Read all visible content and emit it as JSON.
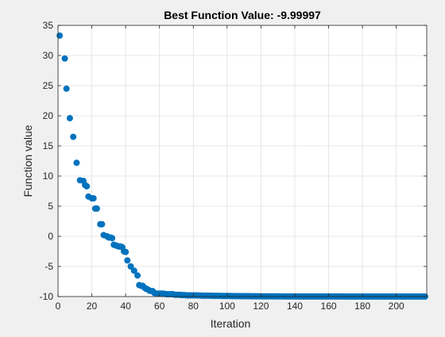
{
  "chart_data": {
    "type": "scatter",
    "title": "Best Function Value: -9.99997",
    "xlabel": "Iteration",
    "ylabel": "Function value",
    "xlim": [
      0,
      218
    ],
    "ylim": [
      -10,
      35
    ],
    "xticks": [
      0,
      20,
      40,
      60,
      80,
      100,
      120,
      140,
      160,
      180,
      200
    ],
    "yticks": [
      -10,
      -5,
      0,
      5,
      10,
      15,
      20,
      25,
      30,
      35
    ],
    "grid": true,
    "marker_color": "#0072BD",
    "series": [
      {
        "points": [
          [
            1,
            33.3
          ],
          [
            4,
            29.5
          ],
          [
            5,
            24.5
          ],
          [
            7,
            19.6
          ],
          [
            9,
            16.5
          ],
          [
            11,
            12.2
          ],
          [
            13,
            9.3
          ],
          [
            15,
            9.2
          ],
          [
            16,
            8.5
          ],
          [
            17,
            8.3
          ],
          [
            18,
            6.6
          ],
          [
            20,
            6.3
          ],
          [
            21,
            6.3
          ],
          [
            22,
            4.6
          ],
          [
            23,
            4.6
          ],
          [
            25,
            2.0
          ],
          [
            26,
            2.0
          ],
          [
            27,
            0.2
          ],
          [
            29,
            0.0
          ],
          [
            30,
            -0.2
          ],
          [
            31,
            -0.2
          ],
          [
            32,
            -0.3
          ],
          [
            33,
            -1.4
          ],
          [
            34,
            -1.5
          ],
          [
            35,
            -1.6
          ],
          [
            36,
            -1.7
          ],
          [
            37,
            -1.7
          ],
          [
            38,
            -1.8
          ],
          [
            39,
            -2.5
          ],
          [
            40,
            -2.6
          ],
          [
            41,
            -4.0
          ],
          [
            43,
            -5.0
          ],
          [
            45,
            -5.7
          ],
          [
            47,
            -6.5
          ],
          [
            48,
            -8.1
          ],
          [
            49,
            -8.2
          ],
          [
            50,
            -8.2
          ],
          [
            51,
            -8.5
          ],
          [
            52,
            -8.7
          ],
          [
            53,
            -8.8
          ],
          [
            54,
            -9.0
          ],
          [
            55,
            -9.1
          ],
          [
            56,
            -9.1
          ],
          [
            57,
            -9.4
          ],
          [
            58,
            -9.5
          ],
          [
            59,
            -9.5
          ],
          [
            60,
            -9.5
          ],
          [
            61,
            -9.5
          ],
          [
            62,
            -9.5
          ],
          [
            63,
            -9.55
          ],
          [
            64,
            -9.6
          ],
          [
            65,
            -9.6
          ],
          [
            66,
            -9.6
          ],
          [
            67,
            -9.6
          ],
          [
            68,
            -9.6
          ],
          [
            69,
            -9.7
          ],
          [
            70,
            -9.7
          ],
          [
            71,
            -9.7
          ],
          [
            72,
            -9.7
          ],
          [
            73,
            -9.75
          ],
          [
            74,
            -9.75
          ],
          [
            75,
            -9.75
          ],
          [
            76,
            -9.8
          ],
          [
            77,
            -9.8
          ],
          [
            78,
            -9.8
          ],
          [
            79,
            -9.8
          ],
          [
            80,
            -9.8
          ],
          [
            81,
            -9.8
          ],
          [
            82,
            -9.8
          ],
          [
            83,
            -9.82
          ],
          [
            84,
            -9.82
          ],
          [
            85,
            -9.85
          ],
          [
            86,
            -9.85
          ],
          [
            87,
            -9.85
          ],
          [
            88,
            -9.85
          ],
          [
            89,
            -9.86
          ],
          [
            90,
            -9.86
          ],
          [
            91,
            -9.87
          ],
          [
            92,
            -9.88
          ],
          [
            93,
            -9.88
          ],
          [
            94,
            -9.88
          ],
          [
            95,
            -9.88
          ],
          [
            96,
            -9.88
          ],
          [
            97,
            -9.9
          ],
          [
            98,
            -9.9
          ],
          [
            99,
            -9.9
          ],
          [
            100,
            -9.9
          ],
          [
            101,
            -9.9
          ],
          [
            102,
            -9.9
          ],
          [
            103,
            -9.92
          ],
          [
            104,
            -9.92
          ],
          [
            105,
            -9.92
          ],
          [
            106,
            -9.92
          ],
          [
            107,
            -9.93
          ],
          [
            108,
            -9.93
          ],
          [
            109,
            -9.93
          ],
          [
            110,
            -9.94
          ],
          [
            111,
            -9.94
          ],
          [
            112,
            -9.94
          ],
          [
            113,
            -9.94
          ],
          [
            114,
            -9.95
          ],
          [
            115,
            -9.95
          ],
          [
            116,
            -9.95
          ],
          [
            117,
            -9.95
          ],
          [
            118,
            -9.95
          ],
          [
            119,
            -9.95
          ],
          [
            120,
            -9.96
          ],
          [
            121,
            -9.96
          ],
          [
            122,
            -9.96
          ],
          [
            123,
            -9.96
          ],
          [
            124,
            -9.96
          ],
          [
            125,
            -9.96
          ],
          [
            126,
            -9.97
          ],
          [
            127,
            -9.97
          ],
          [
            128,
            -9.97
          ],
          [
            129,
            -9.97
          ],
          [
            130,
            -9.97
          ],
          [
            131,
            -9.97
          ],
          [
            132,
            -9.97
          ],
          [
            133,
            -9.97
          ],
          [
            134,
            -9.98
          ],
          [
            135,
            -9.98
          ],
          [
            136,
            -9.98
          ],
          [
            137,
            -9.98
          ],
          [
            138,
            -9.98
          ],
          [
            139,
            -9.98
          ],
          [
            140,
            -9.98
          ],
          [
            141,
            -9.98
          ],
          [
            142,
            -9.98
          ],
          [
            143,
            -9.98
          ],
          [
            144,
            -9.98
          ],
          [
            145,
            -9.99
          ],
          [
            146,
            -9.99
          ],
          [
            147,
            -9.99
          ],
          [
            148,
            -9.99
          ],
          [
            149,
            -9.99
          ],
          [
            150,
            -9.99
          ],
          [
            151,
            -9.99
          ],
          [
            152,
            -9.99
          ],
          [
            153,
            -9.99
          ],
          [
            154,
            -9.99
          ],
          [
            155,
            -9.99
          ],
          [
            156,
            -9.99
          ],
          [
            157,
            -9.99
          ],
          [
            158,
            -9.99
          ],
          [
            159,
            -9.99
          ],
          [
            160,
            -9.99
          ],
          [
            161,
            -9.99
          ],
          [
            162,
            -9.99
          ],
          [
            163,
            -9.99
          ],
          [
            164,
            -9.99
          ],
          [
            165,
            -9.99
          ],
          [
            166,
            -9.99
          ],
          [
            167,
            -9.99
          ],
          [
            168,
            -9.99
          ],
          [
            169,
            -9.99
          ],
          [
            170,
            -9.995
          ],
          [
            171,
            -9.995
          ],
          [
            172,
            -9.995
          ],
          [
            173,
            -9.995
          ],
          [
            174,
            -9.995
          ],
          [
            175,
            -9.995
          ],
          [
            176,
            -9.995
          ],
          [
            177,
            -9.995
          ],
          [
            178,
            -9.995
          ],
          [
            179,
            -9.995
          ],
          [
            180,
            -9.995
          ],
          [
            181,
            -9.995
          ],
          [
            182,
            -9.995
          ],
          [
            183,
            -9.995
          ],
          [
            184,
            -9.995
          ],
          [
            185,
            -9.995
          ],
          [
            186,
            -9.995
          ],
          [
            187,
            -9.995
          ],
          [
            188,
            -9.995
          ],
          [
            189,
            -9.995
          ],
          [
            190,
            -9.995
          ],
          [
            191,
            -9.997
          ],
          [
            192,
            -9.997
          ],
          [
            193,
            -9.997
          ],
          [
            194,
            -9.997
          ],
          [
            195,
            -9.997
          ],
          [
            196,
            -9.997
          ],
          [
            197,
            -9.997
          ],
          [
            198,
            -9.997
          ],
          [
            199,
            -9.997
          ],
          [
            200,
            -9.997
          ],
          [
            201,
            -9.997
          ],
          [
            202,
            -9.997
          ],
          [
            203,
            -9.997
          ],
          [
            204,
            -9.997
          ],
          [
            205,
            -9.997
          ],
          [
            206,
            -9.997
          ],
          [
            207,
            -9.997
          ],
          [
            208,
            -9.997
          ],
          [
            209,
            -9.997
          ],
          [
            210,
            -9.997
          ],
          [
            211,
            -9.997
          ],
          [
            212,
            -9.997
          ],
          [
            213,
            -9.997
          ],
          [
            214,
            -9.997
          ],
          [
            215,
            -9.997
          ],
          [
            216,
            -9.997
          ],
          [
            217,
            -9.99997
          ]
        ]
      }
    ]
  }
}
